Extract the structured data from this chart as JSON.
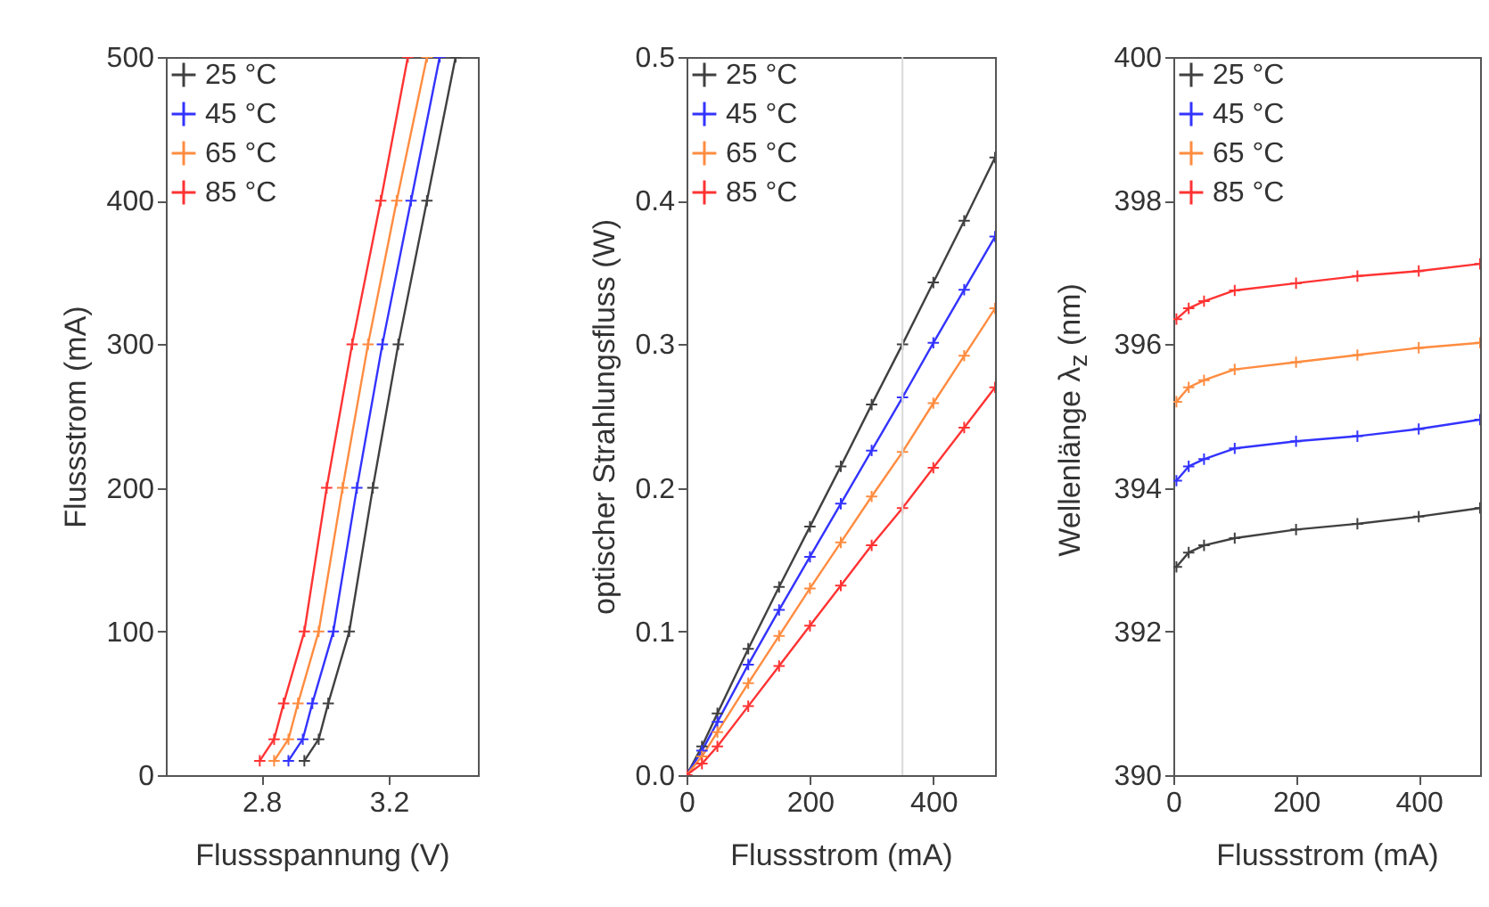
{
  "chart_data": [
    {
      "type": "line",
      "xlabel": "Flussspannung (V)",
      "ylabel": "Flussstrom (mA)",
      "xlim": [
        2.5,
        3.48
      ],
      "xticks": [
        2.8,
        3.2
      ],
      "ylim": [
        0,
        500
      ],
      "yticks": [
        0,
        100,
        200,
        300,
        400,
        500
      ],
      "legend": "top left",
      "marker": "cross",
      "line_style": "solid",
      "series": [
        {
          "name": "25 °C",
          "color": "#404040",
          "x": [
            2.935,
            2.98,
            3.01,
            3.076,
            3.15,
            3.23,
            3.32,
            3.41
          ],
          "values": [
            10,
            25,
            50,
            100,
            200,
            300,
            400,
            500
          ]
        },
        {
          "name": "45 °C",
          "color": "#3333ff",
          "x": [
            2.885,
            2.93,
            2.96,
            3.026,
            3.1,
            3.18,
            3.27,
            3.36
          ],
          "values": [
            10,
            25,
            50,
            100,
            200,
            300,
            400,
            500
          ]
        },
        {
          "name": "65 °C",
          "color": "#ff8c40",
          "x": [
            2.84,
            2.885,
            2.915,
            2.98,
            3.055,
            3.135,
            3.225,
            3.32
          ],
          "values": [
            10,
            25,
            50,
            100,
            200,
            300,
            400,
            500
          ]
        },
        {
          "name": "85 °C",
          "color": "#ff3333",
          "x": [
            2.795,
            2.84,
            2.87,
            2.935,
            3.005,
            3.085,
            3.175,
            3.26
          ],
          "values": [
            10,
            25,
            50,
            100,
            200,
            300,
            400,
            500
          ]
        }
      ]
    },
    {
      "type": "line",
      "xlabel": "Flussstrom (mA)",
      "ylabel": "optischer Strahlungsfluss (W)",
      "xlim": [
        0,
        500
      ],
      "xticks": [
        0,
        200,
        400
      ],
      "ylim": [
        0,
        0.5
      ],
      "yticks": [
        {
          "value": 0,
          "label": "0.0"
        },
        0.1,
        0.2,
        0.3,
        0.4,
        0.5
      ],
      "legend": "top left",
      "marker": "cross",
      "line_style": "solid",
      "ref_lines": [
        {
          "axis": "x",
          "value": 350,
          "color": "#d9d9d9"
        }
      ],
      "series": [
        {
          "name": "25 °C",
          "color": "#404040",
          "x": [
            0,
            25,
            50,
            100,
            150,
            200,
            250,
            300,
            350,
            400,
            450,
            500
          ],
          "values": [
            0,
            0.02,
            0.043,
            0.088,
            0.131,
            0.173,
            0.215,
            0.258,
            0.3,
            0.343,
            0.386,
            0.43
          ]
        },
        {
          "name": "45 °C",
          "color": "#3333ff",
          "x": [
            0,
            25,
            50,
            100,
            150,
            200,
            250,
            300,
            350,
            400,
            450,
            500
          ],
          "values": [
            0,
            0.017,
            0.037,
            0.077,
            0.115,
            0.152,
            0.189,
            0.226,
            0.263,
            0.301,
            0.338,
            0.375
          ]
        },
        {
          "name": "65 °C",
          "color": "#ff8c40",
          "x": [
            0,
            25,
            50,
            100,
            150,
            200,
            250,
            300,
            350,
            400,
            450,
            500
          ],
          "values": [
            0,
            0.013,
            0.03,
            0.064,
            0.097,
            0.13,
            0.162,
            0.194,
            0.225,
            0.259,
            0.292,
            0.325
          ]
        },
        {
          "name": "85 °C",
          "color": "#ff3333",
          "x": [
            0,
            25,
            50,
            100,
            150,
            200,
            250,
            300,
            350,
            400,
            450,
            500
          ],
          "values": [
            0,
            0.008,
            0.02,
            0.048,
            0.076,
            0.104,
            0.132,
            0.16,
            0.186,
            0.214,
            0.242,
            0.27
          ]
        }
      ]
    },
    {
      "type": "line",
      "xlabel": "Flussstrom (mA)",
      "ylabel": "Wellenlänge λ$_{z}$ (nm)",
      "xlim": [
        0,
        500
      ],
      "xticks": [
        0,
        200,
        400
      ],
      "ylim": [
        390,
        400
      ],
      "yticks": [
        390,
        392,
        394,
        396,
        398,
        400
      ],
      "legend": "top left",
      "marker": "cross",
      "line_style": "solid",
      "series": [
        {
          "name": "25 °C",
          "color": "#404040",
          "x": [
            5,
            25,
            50,
            100,
            200,
            300,
            400,
            500
          ],
          "values": [
            392.9,
            393.1,
            393.2,
            393.3,
            393.42,
            393.5,
            393.6,
            393.72
          ]
        },
        {
          "name": "45 °C",
          "color": "#3333ff",
          "x": [
            5,
            25,
            50,
            100,
            200,
            300,
            400,
            500
          ],
          "values": [
            394.1,
            394.3,
            394.4,
            394.55,
            394.65,
            394.72,
            394.82,
            394.95
          ]
        },
        {
          "name": "65 °C",
          "color": "#ff8c40",
          "x": [
            5,
            25,
            50,
            100,
            200,
            300,
            400,
            500
          ],
          "values": [
            395.2,
            395.4,
            395.5,
            395.65,
            395.75,
            395.85,
            395.95,
            396.02
          ]
        },
        {
          "name": "85 °C",
          "color": "#ff3333",
          "x": [
            5,
            25,
            50,
            100,
            200,
            300,
            400,
            500
          ],
          "values": [
            396.35,
            396.5,
            396.6,
            396.75,
            396.85,
            396.95,
            397.02,
            397.12
          ]
        }
      ]
    }
  ]
}
